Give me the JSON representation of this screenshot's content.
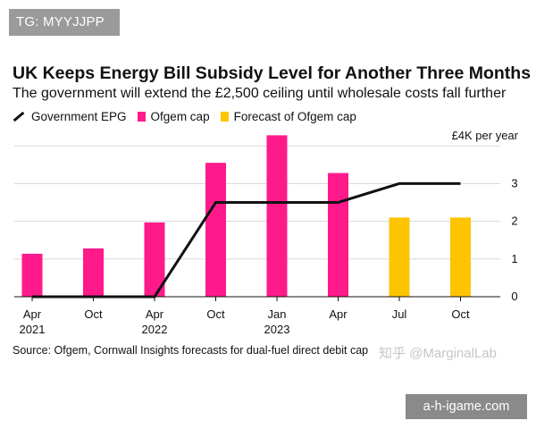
{
  "badge": "TG: MYYJJPP",
  "watermark_text": "知乎 @MarginalLab",
  "site_badge": "a-h-igame.com",
  "source": "Source: Ofgem, Cornwall Insights forecasts for dual-fuel direct debit cap",
  "colors": {
    "epg_line": "#111111",
    "ofgem": "#ff1a8c",
    "forecast": "#ffc400",
    "grid": "#d8d8d8"
  },
  "chart_data": {
    "type": "bar",
    "title": "UK Keeps Energy Bill Subsidy Level for Another Three Months",
    "subtitle": "The government will extend the £2,500 ceiling until wholesale costs fall further",
    "ylabel": "£4K per year",
    "ylim": [
      0,
      4
    ],
    "yticks": [
      0,
      1,
      2,
      3
    ],
    "legend": [
      "Government EPG",
      "Ofgem cap",
      "Forecast of Ofgem cap"
    ],
    "categories": [
      "Apr 2021",
      "Oct",
      "Apr 2022",
      "Oct",
      "Jan 2023",
      "Apr",
      "Jul",
      "Oct"
    ],
    "x_tick_labels": [
      {
        "top": "Apr",
        "bottom": "2021"
      },
      {
        "top": "Oct",
        "bottom": ""
      },
      {
        "top": "Apr",
        "bottom": "2022"
      },
      {
        "top": "Oct",
        "bottom": ""
      },
      {
        "top": "Jan",
        "bottom": "2023"
      },
      {
        "top": "Apr",
        "bottom": ""
      },
      {
        "top": "Jul",
        "bottom": ""
      },
      {
        "top": "Oct",
        "bottom": ""
      }
    ],
    "series": [
      {
        "name": "Ofgem cap",
        "kind": "bar",
        "values": [
          1.14,
          1.28,
          1.97,
          3.55,
          4.28,
          3.28,
          null,
          null
        ]
      },
      {
        "name": "Forecast of Ofgem cap",
        "kind": "bar",
        "values": [
          null,
          null,
          null,
          null,
          null,
          null,
          2.1,
          2.1
        ]
      },
      {
        "name": "Government EPG",
        "kind": "line",
        "values": [
          0,
          0,
          0,
          2.5,
          2.5,
          2.5,
          3.0,
          3.0
        ]
      }
    ]
  }
}
